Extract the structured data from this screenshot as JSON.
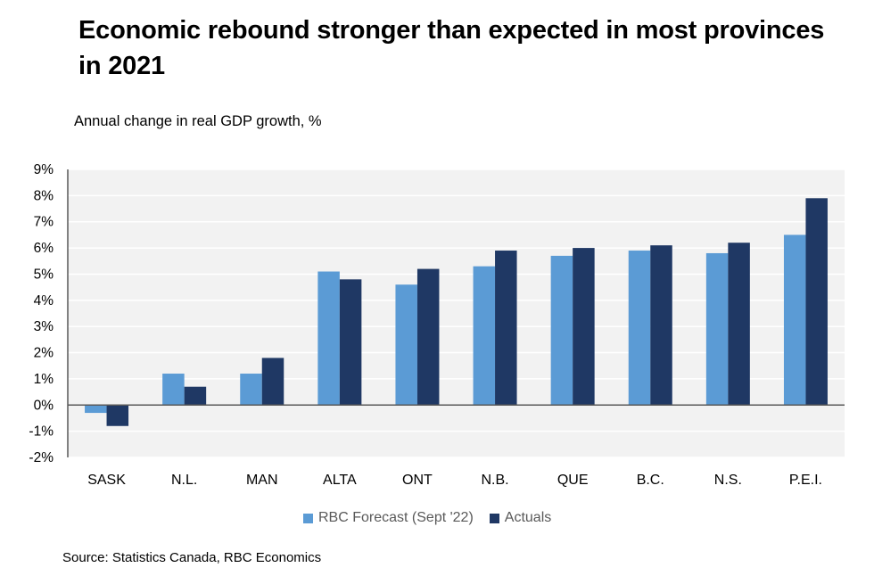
{
  "header": {
    "title": "Economic rebound stronger than expected in most provinces in 2021",
    "subtitle": "Annual change in real GDP growth, %"
  },
  "footer": {
    "source": "Source: Statistics Canada, RBC Economics"
  },
  "chart_data": {
    "type": "bar",
    "title": "Economic rebound stronger than expected in most provinces in 2021",
    "ylabel": "Annual change in real GDP growth, %",
    "xlabel": "",
    "ylim": [
      -2,
      9
    ],
    "yticks": [
      "-2%",
      "-1%",
      "0%",
      "1%",
      "2%",
      "3%",
      "4%",
      "5%",
      "6%",
      "7%",
      "8%",
      "9%"
    ],
    "grid": true,
    "legend": "bottom",
    "categories": [
      "SASK",
      "N.L.",
      "MAN",
      "ALTA",
      "ONT",
      "N.B.",
      "QUE",
      "B.C.",
      "N.S.",
      "P.E.I."
    ],
    "series": [
      {
        "name": "RBC Forecast (Sept '22)",
        "color": "#5B9BD5",
        "values": [
          -0.3,
          1.2,
          1.2,
          5.1,
          4.6,
          5.3,
          5.7,
          5.9,
          5.8,
          6.5
        ]
      },
      {
        "name": "Actuals",
        "color": "#1F3864",
        "values": [
          -0.8,
          0.7,
          1.8,
          4.8,
          5.2,
          5.9,
          6.0,
          6.1,
          6.2,
          7.9
        ]
      }
    ]
  }
}
